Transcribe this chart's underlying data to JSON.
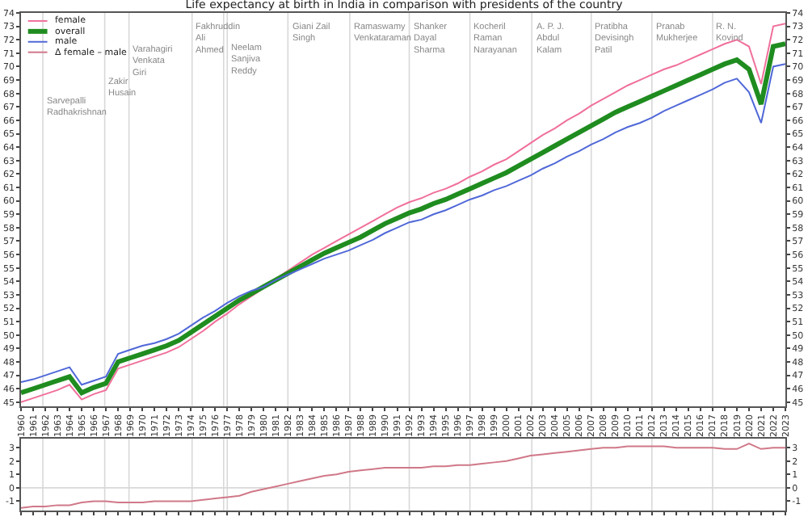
{
  "chart_data": [
    {
      "type": "line",
      "title": "Life expectancy at birth in India in comparison with presidents of the country",
      "x": [
        1960,
        1961,
        1962,
        1963,
        1964,
        1965,
        1966,
        1967,
        1968,
        1969,
        1970,
        1971,
        1972,
        1973,
        1974,
        1975,
        1976,
        1977,
        1978,
        1979,
        1980,
        1981,
        1982,
        1983,
        1984,
        1985,
        1986,
        1987,
        1988,
        1989,
        1990,
        1991,
        1992,
        1993,
        1994,
        1995,
        1996,
        1997,
        1998,
        1999,
        2000,
        2001,
        2002,
        2003,
        2004,
        2005,
        2006,
        2007,
        2008,
        2009,
        2010,
        2011,
        2012,
        2013,
        2014,
        2015,
        2016,
        2017,
        2018,
        2019,
        2020,
        2021,
        2022,
        2023
      ],
      "xlim": [
        1960,
        2023
      ],
      "xticks": [
        1960,
        1961,
        1962,
        1963,
        1964,
        1965,
        1966,
        1967,
        1968,
        1969,
        1970,
        1971,
        1972,
        1973,
        1974,
        1975,
        1976,
        1977,
        1978,
        1979,
        1980,
        1981,
        1982,
        1983,
        1984,
        1985,
        1986,
        1987,
        1988,
        1989,
        1990,
        1991,
        1992,
        1993,
        1994,
        1995,
        1996,
        1997,
        1998,
        1999,
        2000,
        2001,
        2002,
        2003,
        2004,
        2005,
        2006,
        2007,
        2008,
        2009,
        2010,
        2011,
        2012,
        2013,
        2014,
        2015,
        2016,
        2017,
        2018,
        2019,
        2020,
        2021,
        2022,
        2023
      ],
      "ylim": [
        44.7,
        74
      ],
      "yticks": [
        45,
        46,
        47,
        48,
        49,
        50,
        51,
        52,
        53,
        54,
        55,
        56,
        57,
        58,
        59,
        60,
        61,
        62,
        63,
        64,
        65,
        66,
        67,
        68,
        69,
        70,
        71,
        72,
        73,
        74
      ],
      "y2lim": [
        44.7,
        74
      ],
      "y2ticks": [
        45,
        46,
        47,
        48,
        49,
        50,
        51,
        52,
        53,
        54,
        55,
        56,
        57,
        58,
        59,
        60,
        61,
        62,
        63,
        64,
        65,
        66,
        67,
        68,
        69,
        70,
        71,
        72,
        73,
        74
      ],
      "legend": "top left",
      "series": [
        {
          "name": "female",
          "color": "#f0709a",
          "values": [
            45.0,
            45.3,
            45.6,
            45.9,
            46.3,
            45.2,
            45.6,
            45.9,
            47.5,
            47.8,
            48.1,
            48.4,
            48.7,
            49.1,
            49.7,
            50.3,
            51.0,
            51.6,
            52.3,
            52.9,
            53.5,
            54.2,
            54.8,
            55.4,
            56.0,
            56.5,
            57.0,
            57.5,
            58.0,
            58.5,
            59.0,
            59.5,
            59.9,
            60.2,
            60.6,
            60.9,
            61.3,
            61.8,
            62.2,
            62.7,
            63.1,
            63.7,
            64.3,
            64.9,
            65.4,
            66.0,
            66.5,
            67.1,
            67.6,
            68.1,
            68.6,
            69.0,
            69.4,
            69.8,
            70.1,
            70.5,
            70.9,
            71.3,
            71.7,
            72.0,
            71.5,
            68.7,
            73.0,
            73.2
          ]
        },
        {
          "name": "overall",
          "color": "#1f8c1f",
          "values": [
            45.7,
            46.0,
            46.3,
            46.6,
            46.9,
            45.7,
            46.1,
            46.4,
            48.0,
            48.3,
            48.6,
            48.9,
            49.2,
            49.6,
            50.2,
            50.8,
            51.4,
            52.0,
            52.6,
            53.1,
            53.6,
            54.1,
            54.6,
            55.1,
            55.6,
            56.1,
            56.5,
            56.9,
            57.3,
            57.8,
            58.3,
            58.7,
            59.1,
            59.4,
            59.8,
            60.1,
            60.5,
            60.9,
            61.3,
            61.7,
            62.1,
            62.6,
            63.1,
            63.6,
            64.1,
            64.6,
            65.1,
            65.6,
            66.1,
            66.6,
            67.0,
            67.4,
            67.8,
            68.2,
            68.6,
            69.0,
            69.4,
            69.8,
            70.2,
            70.5,
            69.8,
            67.2,
            71.5,
            71.7
          ]
        },
        {
          "name": "male",
          "color": "#5068d8",
          "values": [
            46.5,
            46.7,
            47.0,
            47.3,
            47.6,
            46.3,
            46.6,
            46.9,
            48.6,
            48.9,
            49.2,
            49.4,
            49.7,
            50.1,
            50.7,
            51.3,
            51.8,
            52.4,
            52.9,
            53.3,
            53.6,
            54.1,
            54.5,
            54.9,
            55.3,
            55.7,
            56.0,
            56.3,
            56.7,
            57.1,
            57.6,
            58.0,
            58.4,
            58.6,
            59.0,
            59.3,
            59.7,
            60.1,
            60.4,
            60.8,
            61.1,
            61.5,
            61.9,
            62.4,
            62.8,
            63.3,
            63.7,
            64.2,
            64.6,
            65.1,
            65.5,
            65.8,
            66.2,
            66.7,
            67.1,
            67.5,
            67.9,
            68.3,
            68.8,
            69.1,
            68.1,
            65.8,
            70.0,
            70.2
          ]
        }
      ],
      "ref_lines": [
        {
          "axis": "x",
          "value": 1961.8,
          "label": "Sarvepalli\nRadhakrishnan"
        },
        {
          "axis": "x",
          "value": 1966.9,
          "label": "Zakir\nHusain"
        },
        {
          "axis": "x",
          "value": 1968.9,
          "label": "Varahagiri\nVenkata\nGiri"
        },
        {
          "axis": "x",
          "value": 1974.1,
          "label": "Fakhruddin\nAli\nAhmed"
        },
        {
          "axis": "x",
          "value": 1976.7,
          "label": null
        },
        {
          "axis": "x",
          "value": 1977.0,
          "label": "Neelam\nSanjiva\nReddy"
        },
        {
          "axis": "x",
          "value": 1982.0,
          "label": "Giani Zail\nSingh"
        },
        {
          "axis": "x",
          "value": 1987.1,
          "label": "Ramaswamy\nVenkataraman"
        },
        {
          "axis": "x",
          "value": 1992.0,
          "label": "Shanker\nDayal\nSharma"
        },
        {
          "axis": "x",
          "value": 1997.0,
          "label": "Kocheril\nRaman\nNarayanan"
        },
        {
          "axis": "x",
          "value": 2002.1,
          "label": "A. P. J.\nAbdul\nKalam"
        },
        {
          "axis": "x",
          "value": 2007.0,
          "label": "Pratibha\nDevisingh\nPatil"
        },
        {
          "axis": "x",
          "value": 2012.0,
          "label": "Pranab\nMukherjee"
        },
        {
          "axis": "x",
          "value": 2017.0,
          "label": "R. N.\nKovind"
        }
      ]
    },
    {
      "type": "line",
      "x": [
        1960,
        1961,
        1962,
        1963,
        1964,
        1965,
        1966,
        1967,
        1968,
        1969,
        1970,
        1971,
        1972,
        1973,
        1974,
        1975,
        1976,
        1977,
        1978,
        1979,
        1980,
        1981,
        1982,
        1983,
        1984,
        1985,
        1986,
        1987,
        1988,
        1989,
        1990,
        1991,
        1992,
        1993,
        1994,
        1995,
        1996,
        1997,
        1998,
        1999,
        2000,
        2001,
        2002,
        2003,
        2004,
        2005,
        2006,
        2007,
        2008,
        2009,
        2010,
        2011,
        2012,
        2013,
        2014,
        2015,
        2016,
        2017,
        2018,
        2019,
        2020,
        2021,
        2022,
        2023
      ],
      "xlim": [
        1960,
        2023
      ],
      "xticks": [
        1960,
        1961,
        1962,
        1963,
        1964,
        1965,
        1966,
        1967,
        1968,
        1969,
        1970,
        1971,
        1972,
        1973,
        1974,
        1975,
        1976,
        1977,
        1978,
        1979,
        1980,
        1981,
        1982,
        1983,
        1984,
        1985,
        1986,
        1987,
        1988,
        1989,
        1990,
        1991,
        1992,
        1993,
        1994,
        1995,
        1996,
        1997,
        1998,
        1999,
        2000,
        2001,
        2002,
        2003,
        2004,
        2005,
        2006,
        2007,
        2008,
        2009,
        2010,
        2011,
        2012,
        2013,
        2014,
        2015,
        2016,
        2017,
        2018,
        2019,
        2020,
        2021,
        2022,
        2023
      ],
      "tick_labels": "y",
      "ylim": [
        -1.7,
        3.7
      ],
      "yticks": [
        -1,
        0,
        1,
        2,
        3
      ],
      "y2lim": [
        -1.7,
        3.7
      ],
      "y2ticks": [
        -1,
        0,
        1,
        2,
        3
      ],
      "series": [
        {
          "name": "Δ female – male",
          "color": "#d07888",
          "values": [
            -1.5,
            -1.4,
            -1.4,
            -1.3,
            -1.3,
            -1.1,
            -1.0,
            -1.0,
            -1.1,
            -1.1,
            -1.1,
            -1.0,
            -1.0,
            -1.0,
            -1.0,
            -0.9,
            -0.8,
            -0.7,
            -0.6,
            -0.3,
            -0.1,
            0.1,
            0.3,
            0.5,
            0.7,
            0.9,
            1.0,
            1.2,
            1.3,
            1.4,
            1.5,
            1.5,
            1.5,
            1.5,
            1.6,
            1.6,
            1.7,
            1.7,
            1.8,
            1.9,
            2.0,
            2.2,
            2.4,
            2.5,
            2.6,
            2.7,
            2.8,
            2.9,
            3.0,
            3.0,
            3.1,
            3.1,
            3.1,
            3.1,
            3.0,
            3.0,
            3.0,
            3.0,
            2.9,
            2.9,
            3.3,
            2.9,
            3.0,
            3.0
          ]
        }
      ],
      "ref_lines": [
        {
          "axis": "y",
          "value": 0,
          "label": null
        },
        {
          "axis": "x",
          "value": 1961.8,
          "label": null
        },
        {
          "axis": "x",
          "value": 1966.9,
          "label": null
        },
        {
          "axis": "x",
          "value": 1968.9,
          "label": null
        },
        {
          "axis": "x",
          "value": 1974.1,
          "label": null
        },
        {
          "axis": "x",
          "value": 1976.7,
          "label": null
        },
        {
          "axis": "x",
          "value": 1977.0,
          "label": null
        },
        {
          "axis": "x",
          "value": 1982.0,
          "label": null
        },
        {
          "axis": "x",
          "value": 1987.1,
          "label": null
        },
        {
          "axis": "x",
          "value": 1992.0,
          "label": null
        },
        {
          "axis": "x",
          "value": 1997.0,
          "label": null
        },
        {
          "axis": "x",
          "value": 2002.1,
          "label": null
        },
        {
          "axis": "x",
          "value": 2007.0,
          "label": null
        },
        {
          "axis": "x",
          "value": 2012.0,
          "label": null
        },
        {
          "axis": "x",
          "value": 2017.0,
          "label": null
        }
      ]
    }
  ]
}
